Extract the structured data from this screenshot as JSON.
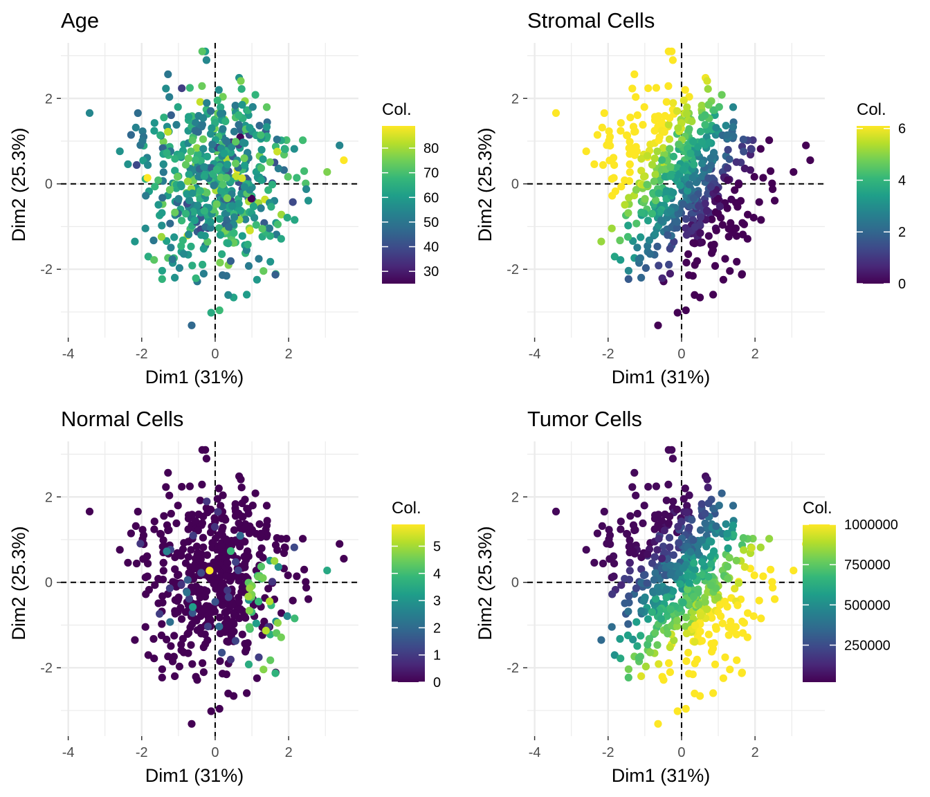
{
  "chart_data": [
    {
      "type": "scatter",
      "title": "Age",
      "xlabel": "Dim1 (31%)",
      "ylabel": "Dim2 (25.3%)",
      "xlim": [
        -4.2,
        3.9
      ],
      "ylim": [
        -3.6,
        3.3
      ],
      "x_ticks": [
        -4,
        -2,
        0,
        2
      ],
      "y_ticks": [
        -2,
        0,
        2
      ],
      "grid": true,
      "reference_lines": {
        "x": 0,
        "y": 0,
        "style": "dashed"
      },
      "color_variable": "Col.",
      "colorscale": "viridis",
      "color_range": [
        25,
        89
      ],
      "color_ticks": [
        30,
        40,
        50,
        60,
        70,
        80
      ],
      "legend_placement": "right",
      "n_points": 540,
      "seed": 11
    },
    {
      "type": "scatter",
      "title": "Stromal Cells",
      "xlabel": "Dim1 (31%)",
      "ylabel": "Dim2 (25.3%)",
      "xlim": [
        -4.2,
        3.9
      ],
      "ylim": [
        -3.6,
        3.3
      ],
      "x_ticks": [
        -4,
        -2,
        0,
        2
      ],
      "y_ticks": [
        -2,
        0,
        2
      ],
      "grid": true,
      "reference_lines": {
        "x": 0,
        "y": 0,
        "style": "dashed"
      },
      "color_variable": "Col.",
      "colorscale": "viridis",
      "color_range": [
        0,
        6.1
      ],
      "color_ticks": [
        0,
        2,
        4,
        6
      ],
      "legend_placement": "right",
      "n_points": 540,
      "seed": 11
    },
    {
      "type": "scatter",
      "title": "Normal Cells",
      "xlabel": "Dim1 (31%)",
      "ylabel": "Dim2 (25.3%)",
      "xlim": [
        -4.2,
        3.9
      ],
      "ylim": [
        -3.6,
        3.3
      ],
      "x_ticks": [
        -4,
        -2,
        0,
        2
      ],
      "y_ticks": [
        -2,
        0,
        2
      ],
      "grid": true,
      "reference_lines": {
        "x": 0,
        "y": 0,
        "style": "dashed"
      },
      "color_variable": "Col.",
      "colorscale": "viridis",
      "color_range": [
        0,
        5.8
      ],
      "color_ticks": [
        0,
        1,
        2,
        3,
        4,
        5
      ],
      "legend_placement": "right",
      "n_points": 540,
      "seed": 11
    },
    {
      "type": "scatter",
      "title": "Tumor Cells",
      "xlabel": "Dim1 (31%)",
      "ylabel": "Dim2 (25.3%)",
      "xlim": [
        -4.2,
        3.9
      ],
      "ylim": [
        -3.6,
        3.3
      ],
      "x_ticks": [
        -4,
        -2,
        0,
        2
      ],
      "y_ticks": [
        -2,
        0,
        2
      ],
      "grid": true,
      "reference_lines": {
        "x": 0,
        "y": 0,
        "style": "dashed"
      },
      "color_variable": "Col.",
      "colorscale": "viridis",
      "color_range": [
        20000,
        1000000
      ],
      "color_ticks": [
        250000,
        500000,
        750000,
        1000000
      ],
      "legend_placement": "right",
      "n_points": 540,
      "seed": 11
    }
  ]
}
